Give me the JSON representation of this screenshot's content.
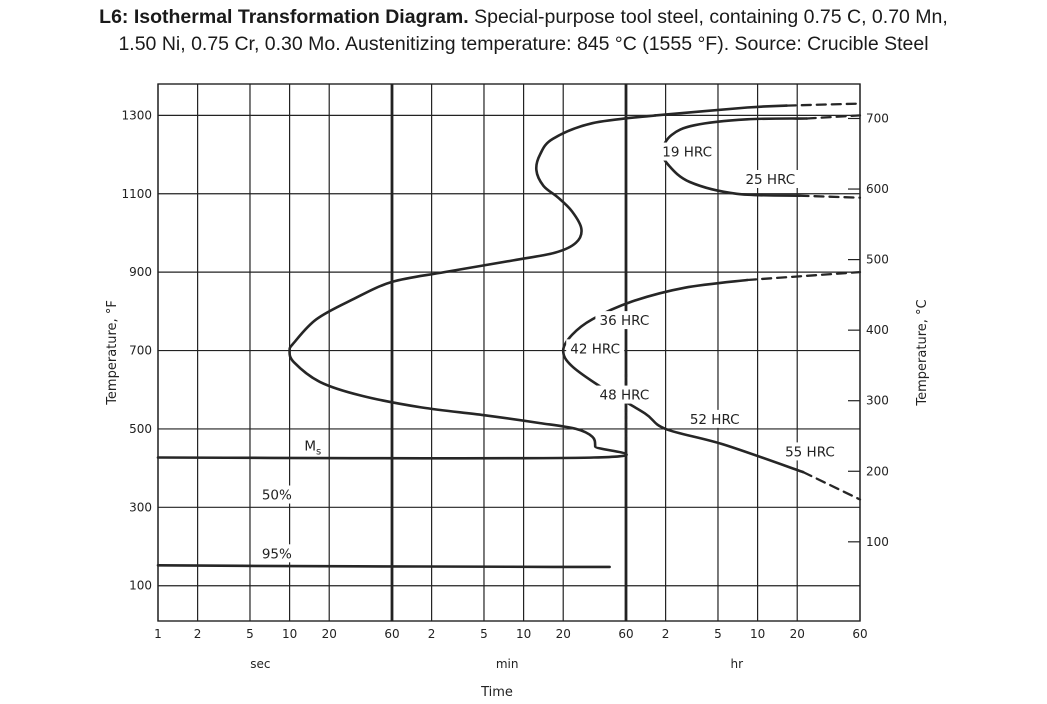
{
  "caption": {
    "title_bold": "L6: Isothermal Transformation Diagram.",
    "line1_rest": " Special-purpose tool steel, containing 0.75 C, 0.70 Mn,",
    "line2": "1.50 Ni, 0.75 Cr, 0.30 Mo. Austenitizing temperature: 845 °C (1555 °F). Source: Crucible Steel"
  },
  "chart_data": {
    "type": "line",
    "xlabel": "Time",
    "xscale": "log",
    "xlim_seconds": [
      1,
      216000
    ],
    "x_tick_labels": [
      {
        "label": "1",
        "seconds": 1
      },
      {
        "label": "2",
        "seconds": 2
      },
      {
        "label": "5",
        "seconds": 5
      },
      {
        "label": "10",
        "seconds": 10
      },
      {
        "label": "20",
        "seconds": 20
      },
      {
        "label": "60",
        "seconds": 60
      },
      {
        "label": "2",
        "seconds": 120
      },
      {
        "label": "5",
        "seconds": 300
      },
      {
        "label": "10",
        "seconds": 600
      },
      {
        "label": "20",
        "seconds": 1200
      },
      {
        "label": "60",
        "seconds": 3600
      },
      {
        "label": "2",
        "seconds": 7200
      },
      {
        "label": "5",
        "seconds": 18000
      },
      {
        "label": "10",
        "seconds": 36000
      },
      {
        "label": "20",
        "seconds": 72000
      },
      {
        "label": "60",
        "seconds": 216000
      }
    ],
    "x_unit_labels": [
      {
        "label": "sec",
        "seconds": 6
      },
      {
        "label": "min",
        "seconds": 450
      },
      {
        "label": "hr",
        "seconds": 25000
      }
    ],
    "ylabel_left": "Temperature, °F",
    "ylabel_right": "Temperature, °C",
    "ylim_F": [
      10,
      1380
    ],
    "y_ticks_F": [
      100,
      300,
      500,
      700,
      900,
      1100,
      1300
    ],
    "y_ticks_C": [
      100,
      200,
      300,
      400,
      500,
      600,
      700
    ],
    "grid": true,
    "series": [
      {
        "kind": "solid",
        "points": [
          [
            6000,
            1300
          ],
          [
            2000,
            1280
          ],
          [
            1000,
            1240
          ],
          [
            800,
            1200
          ],
          [
            750,
            1160
          ],
          [
            850,
            1120
          ],
          [
            1100,
            1090
          ],
          [
            1400,
            1055
          ],
          [
            1650,
            1010
          ],
          [
            1500,
            975
          ],
          [
            1050,
            950
          ],
          [
            500,
            930
          ],
          [
            150,
            900
          ],
          [
            60,
            875
          ],
          [
            30,
            830
          ],
          [
            16,
            780
          ],
          [
            10.8,
            720
          ],
          [
            10,
            700
          ],
          [
            10.8,
            670
          ],
          [
            17,
            620
          ],
          [
            35,
            585
          ],
          [
            100,
            555
          ],
          [
            300,
            535
          ],
          [
            800,
            515
          ],
          [
            1500,
            500
          ],
          [
            2000,
            480
          ],
          [
            2100,
            455
          ],
          [
            2050,
            427
          ],
          [
            1,
            427
          ]
        ]
      },
      {
        "kind": "solid",
        "points": [
          [
            6000,
            1300
          ],
          [
            30000,
            1320
          ],
          [
            60000,
            1325
          ]
        ]
      },
      {
        "kind": "dashed",
        "points": [
          [
            60000,
            1325
          ],
          [
            216000,
            1330
          ]
        ]
      },
      {
        "kind": "solid",
        "points": [
          [
            85000,
            1292
          ],
          [
            30000,
            1290
          ],
          [
            12000,
            1275
          ],
          [
            8000,
            1250
          ],
          [
            6800,
            1210
          ],
          [
            7500,
            1175
          ],
          [
            11000,
            1130
          ],
          [
            25000,
            1100
          ],
          [
            75000,
            1095
          ]
        ]
      },
      {
        "kind": "dashed",
        "points": [
          [
            85000,
            1292
          ],
          [
            216000,
            1300
          ]
        ]
      },
      {
        "kind": "dashed",
        "points": [
          [
            75000,
            1095
          ],
          [
            216000,
            1090
          ]
        ]
      },
      {
        "kind": "solid",
        "points": [
          [
            30000,
            880
          ],
          [
            10000,
            860
          ],
          [
            4000,
            825
          ],
          [
            2000,
            780
          ],
          [
            1400,
            740
          ],
          [
            1200,
            700
          ],
          [
            1400,
            660
          ],
          [
            2500,
            600
          ],
          [
            5000,
            540
          ],
          [
            7200,
            500
          ],
          [
            20000,
            460
          ],
          [
            80000,
            390
          ]
        ]
      },
      {
        "kind": "dashed",
        "points": [
          [
            30000,
            880
          ],
          [
            216000,
            900
          ]
        ]
      },
      {
        "kind": "dashed",
        "points": [
          [
            80000,
            390
          ],
          [
            216000,
            320
          ]
        ]
      },
      {
        "kind": "solid",
        "points": [
          [
            1,
            152
          ],
          [
            10,
            150
          ],
          [
            100,
            149
          ],
          [
            1000,
            148
          ],
          [
            2700,
            148
          ]
        ]
      },
      {
        "kind": "dashed_vertical",
        "points": [
          [
            3600,
            640
          ],
          [
            3600,
            470
          ]
        ]
      }
    ],
    "annotations": [
      {
        "text": "19 HRC",
        "seconds": 10500,
        "F": 1200
      },
      {
        "text": "25 HRC",
        "seconds": 45000,
        "F": 1130
      },
      {
        "text": "36 HRC",
        "seconds": 3500,
        "F": 770
      },
      {
        "text": "42 HRC",
        "seconds": 2100,
        "F": 698
      },
      {
        "text": "48 HRC",
        "seconds": 3500,
        "F": 580
      },
      {
        "text": "52 HRC",
        "seconds": 17000,
        "F": 518
      },
      {
        "text": "55 HRC",
        "seconds": 90000,
        "F": 435
      },
      {
        "text": "M",
        "subscript": "s",
        "seconds": 15,
        "F": 450
      },
      {
        "text": "50%",
        "seconds": 8,
        "F": 325
      },
      {
        "text": "95%",
        "seconds": 8,
        "F": 175
      }
    ]
  }
}
